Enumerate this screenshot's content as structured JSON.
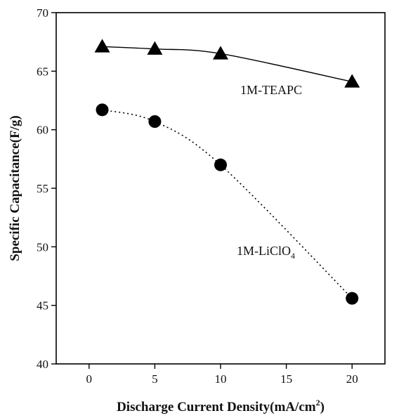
{
  "chart_data": {
    "type": "scatter",
    "title": "",
    "xlabel": "Discharge Current Density(mA/cm²)",
    "ylabel": "Specific Capacitance(F/g)",
    "xlim": [
      -2.5,
      22.5
    ],
    "ylim": [
      40,
      70
    ],
    "xticks": [
      0,
      5,
      10,
      15,
      20
    ],
    "yticks": [
      40,
      45,
      50,
      55,
      60,
      65,
      70
    ],
    "grid": false,
    "series": [
      {
        "name": "1M-TEAPC",
        "marker": "triangle",
        "line": "solid",
        "x": [
          1,
          5,
          10,
          20
        ],
        "y": [
          67.1,
          66.9,
          66.5,
          64.1
        ]
      },
      {
        "name": "1M-LiClO4",
        "marker": "circle",
        "line": "dotted",
        "x": [
          1,
          5,
          10,
          20
        ],
        "y": [
          61.7,
          60.7,
          57.0,
          45.6
        ]
      }
    ],
    "colors": {
      "marker": "#000000",
      "axis": "#000000"
    }
  }
}
